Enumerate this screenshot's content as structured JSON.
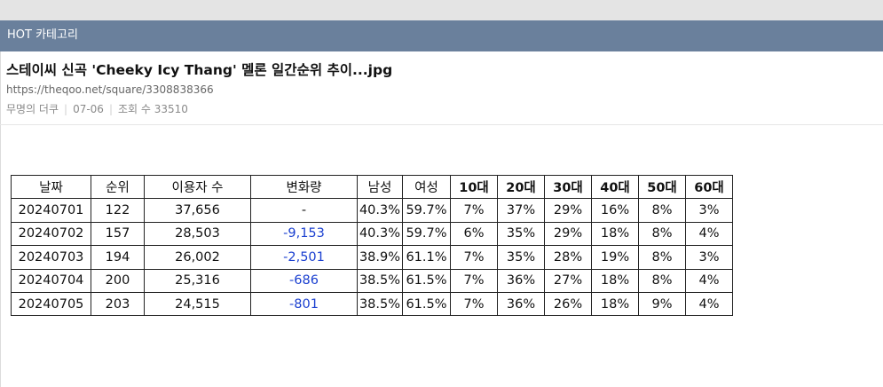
{
  "category_label": "HOT 카테고리",
  "post": {
    "title": "스테이씨 신곡 'Cheeky Icy Thang' 멜론 일간순위 추이...jpg",
    "url": "https://theqoo.net/square/3308838366",
    "author": "무명의 더쿠",
    "date": "07-06",
    "views_label": "조회 수",
    "views": "33510"
  },
  "table": {
    "headers": [
      "날짜",
      "순위",
      "이용자 수",
      "변화량",
      "남성",
      "여성",
      "10대",
      "20대",
      "30대",
      "40대",
      "50대",
      "60대"
    ],
    "rows": [
      [
        "20240701",
        "122",
        "37,656",
        "-",
        "40.3%",
        "59.7%",
        "7%",
        "37%",
        "29%",
        "16%",
        "8%",
        "3%"
      ],
      [
        "20240702",
        "157",
        "28,503",
        "-9,153",
        "40.3%",
        "59.7%",
        "6%",
        "35%",
        "29%",
        "18%",
        "8%",
        "4%"
      ],
      [
        "20240703",
        "194",
        "26,002",
        "-2,501",
        "38.9%",
        "61.1%",
        "7%",
        "35%",
        "28%",
        "19%",
        "8%",
        "3%"
      ],
      [
        "20240704",
        "200",
        "25,316",
        "-686",
        "38.5%",
        "61.5%",
        "7%",
        "36%",
        "27%",
        "18%",
        "8%",
        "4%"
      ],
      [
        "20240705",
        "203",
        "24,515",
        "-801",
        "38.5%",
        "61.5%",
        "7%",
        "36%",
        "26%",
        "18%",
        "9%",
        "4%"
      ]
    ]
  },
  "colors": {
    "category_bar": "#6a809c",
    "negative_change": "#1a3fd0"
  }
}
